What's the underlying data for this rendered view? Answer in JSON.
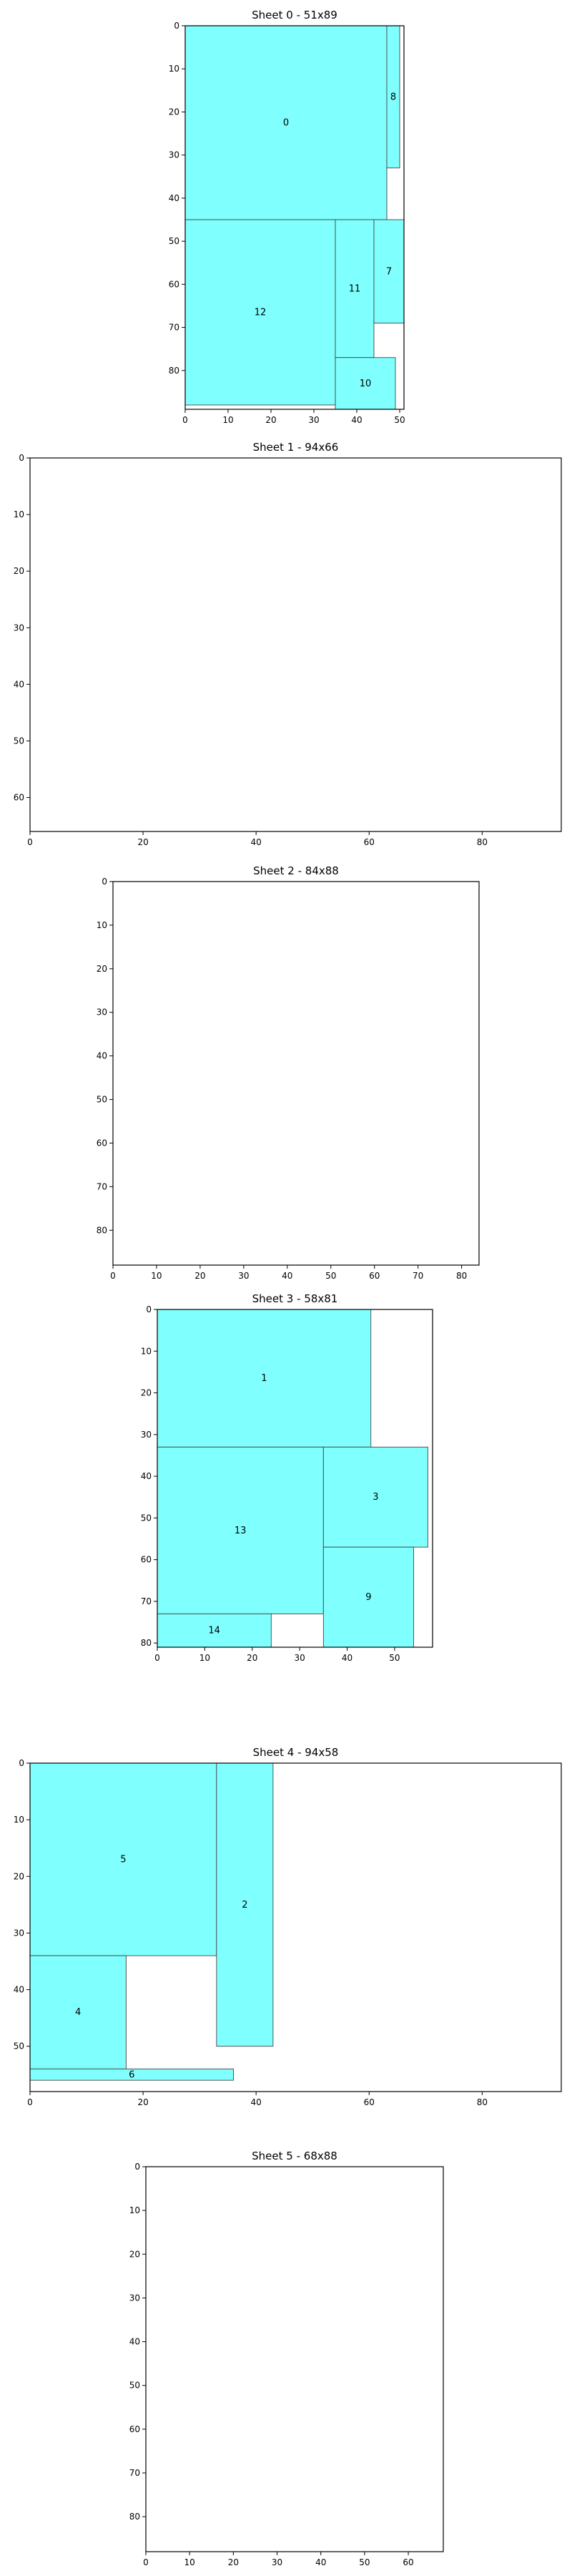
{
  "colors": {
    "piece_fill": "#7ffffd",
    "piece_stroke": "#444444",
    "frame": "#000000"
  },
  "chart_data": [
    {
      "type": "rect-packing",
      "title": "Sheet 0 - 51x89",
      "xlim": [
        0,
        51
      ],
      "ylim": [
        0,
        89
      ],
      "y_inverted": true,
      "xticks": [
        0,
        10,
        20,
        30,
        40,
        50
      ],
      "yticks": [
        0,
        10,
        20,
        30,
        40,
        50,
        60,
        70,
        80
      ],
      "pieces": [
        {
          "label": "0",
          "x": 0,
          "y": 0,
          "w": 47,
          "h": 45
        },
        {
          "label": "8",
          "x": 47,
          "y": 0,
          "w": 3,
          "h": 33
        },
        {
          "label": "12",
          "x": 0,
          "y": 45,
          "w": 35,
          "h": 43
        },
        {
          "label": "11",
          "x": 35,
          "y": 45,
          "w": 9,
          "h": 32
        },
        {
          "label": "7",
          "x": 44,
          "y": 45,
          "w": 7,
          "h": 24
        },
        {
          "label": "10",
          "x": 35,
          "y": 77,
          "w": 14,
          "h": 12
        }
      ]
    },
    {
      "type": "rect-packing",
      "title": "Sheet 1 - 94x66",
      "xlim": [
        0,
        94
      ],
      "ylim": [
        0,
        66
      ],
      "y_inverted": true,
      "xticks": [
        0,
        20,
        40,
        60,
        80
      ],
      "yticks": [
        0,
        10,
        20,
        30,
        40,
        50,
        60
      ],
      "pieces": []
    },
    {
      "type": "rect-packing",
      "title": "Sheet 2 - 84x88",
      "xlim": [
        0,
        84
      ],
      "ylim": [
        0,
        88
      ],
      "y_inverted": true,
      "xticks": [
        0,
        10,
        20,
        30,
        40,
        50,
        60,
        70,
        80
      ],
      "yticks": [
        0,
        10,
        20,
        30,
        40,
        50,
        60,
        70,
        80
      ],
      "pieces": []
    },
    {
      "type": "rect-packing",
      "title": "Sheet 3 - 58x81",
      "xlim": [
        0,
        58
      ],
      "ylim": [
        0,
        81
      ],
      "y_inverted": true,
      "xticks": [
        0,
        10,
        20,
        30,
        40,
        50
      ],
      "yticks": [
        0,
        10,
        20,
        30,
        40,
        50,
        60,
        70,
        80
      ],
      "pieces": [
        {
          "label": "1",
          "x": 0,
          "y": 0,
          "w": 45,
          "h": 33
        },
        {
          "label": "13",
          "x": 0,
          "y": 33,
          "w": 35,
          "h": 40
        },
        {
          "label": "3",
          "x": 35,
          "y": 33,
          "w": 22,
          "h": 24
        },
        {
          "label": "9",
          "x": 35,
          "y": 57,
          "w": 19,
          "h": 24
        },
        {
          "label": "14",
          "x": 0,
          "y": 73,
          "w": 24,
          "h": 8
        }
      ]
    },
    {
      "type": "rect-packing",
      "title": "Sheet 4 - 94x58",
      "xlim": [
        0,
        94
      ],
      "ylim": [
        0,
        58
      ],
      "y_inverted": true,
      "xticks": [
        0,
        20,
        40,
        60,
        80
      ],
      "yticks": [
        0,
        10,
        20,
        30,
        40,
        50
      ],
      "pieces": [
        {
          "label": "5",
          "x": 0,
          "y": 0,
          "w": 33,
          "h": 34
        },
        {
          "label": "2",
          "x": 33,
          "y": 0,
          "w": 10,
          "h": 50
        },
        {
          "label": "4",
          "x": 0,
          "y": 34,
          "w": 17,
          "h": 20
        },
        {
          "label": "6",
          "x": 0,
          "y": 54,
          "w": 36,
          "h": 2
        }
      ]
    },
    {
      "type": "rect-packing",
      "title": "Sheet 5 - 68x88",
      "xlim": [
        0,
        68
      ],
      "ylim": [
        0,
        88
      ],
      "y_inverted": true,
      "xticks": [
        0,
        10,
        20,
        30,
        40,
        50,
        60
      ],
      "yticks": [
        0,
        10,
        20,
        30,
        40,
        50,
        60,
        70,
        80
      ],
      "pieces": []
    }
  ]
}
